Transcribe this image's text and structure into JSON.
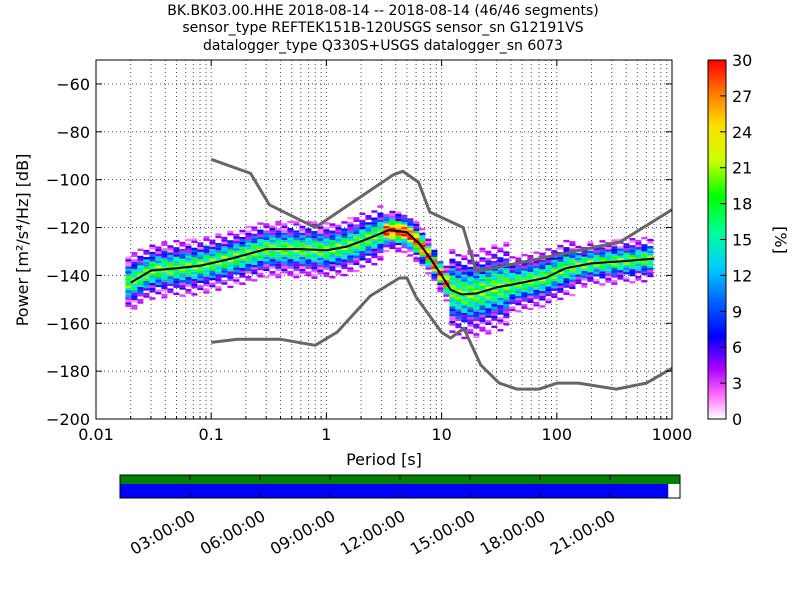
{
  "title": {
    "line1": "BK.BK03.00.HHE   2018-08-14 -- 2018-08-14  (46/46 segments)",
    "line2": "sensor_type REFTEK151B-120USGS sensor_sn G12191VS",
    "line3": "datalogger_type Q330S+USGS datalogger_sn 6073"
  },
  "chart_data": [
    {
      "type": "heatmap",
      "xlabel": "Period [s]",
      "ylabel": "Power [m²/s⁴/Hz] [dB]",
      "xscale": "log",
      "xlim": [
        0.01,
        1000
      ],
      "ylim": [
        -200,
        -50
      ],
      "xticks": [
        0.01,
        0.1,
        1,
        10,
        100,
        1000
      ],
      "xtick_labels": [
        "0.01",
        "0.1",
        "1",
        "10",
        "100",
        "1000"
      ],
      "yticks": [
        -200,
        -180,
        -160,
        -140,
        -120,
        -100,
        -80,
        -60
      ],
      "ytick_labels": [
        "−200",
        "−180",
        "−160",
        "−140",
        "−120",
        "−100",
        "−80",
        "−60"
      ],
      "grid": true,
      "colorbar": {
        "label": "[%]",
        "range": [
          0,
          30
        ],
        "ticks": [
          0,
          3,
          6,
          9,
          12,
          15,
          18,
          21,
          24,
          27,
          30
        ],
        "tick_labels": [
          "0",
          "3",
          "6",
          "9",
          "12",
          "15",
          "18",
          "21",
          "24",
          "27",
          "30"
        ]
      },
      "noise_models": [
        {
          "role": "high-noise-model",
          "period": [
            0.1,
            0.22,
            0.32,
            0.8,
            3.8,
            4.6,
            6.3,
            7.9,
            15.4,
            20,
            354.8,
            1000
          ],
          "power": [
            -91.5,
            -97.4,
            -110.5,
            -120,
            -98,
            -96.5,
            -101,
            -113.5,
            -120,
            -138.5,
            -126,
            -112.5
          ]
        },
        {
          "role": "low-noise-model",
          "period": [
            0.1,
            0.17,
            0.4,
            0.8,
            1.24,
            2.4,
            4.3,
            5,
            6,
            10,
            12,
            15.6,
            21.9,
            31.6,
            45,
            70,
            101,
            154,
            328,
            600,
            1000
          ],
          "power": [
            -168,
            -166.7,
            -166.7,
            -169.2,
            -163.7,
            -148.6,
            -141.1,
            -141.1,
            -149,
            -163.8,
            -166.2,
            -162.1,
            -177.5,
            -185,
            -187.5,
            -187.5,
            -185,
            -185,
            -187.5,
            -185,
            -178.8
          ]
        }
      ],
      "mode_curve": {
        "period": [
          0.02,
          0.03,
          0.05,
          0.08,
          0.15,
          0.3,
          0.6,
          1.0,
          1.5,
          2.5,
          3.5,
          5.0,
          6.5,
          8.0,
          10.0,
          12.0,
          15.0,
          20.0,
          30.0,
          50.0,
          80.0,
          120.0,
          200.0,
          400.0,
          700.0
        ],
        "power": [
          -143,
          -138,
          -137,
          -136,
          -133,
          -129,
          -129,
          -129.5,
          -128,
          -124,
          -121,
          -122,
          -127,
          -133,
          -140,
          -146,
          -148,
          -147.5,
          -145,
          -143,
          -141,
          -137,
          -135,
          -134,
          -133
        ]
      }
    },
    {
      "type": "bar",
      "role": "data-availability",
      "xticks": [
        "03:00:00",
        "06:00:00",
        "09:00:00",
        "12:00:00",
        "15:00:00",
        "18:00:00",
        "21:00:00"
      ],
      "coverage_fraction": 0.979,
      "colors": {
        "availability": "#008000",
        "psd_used": "#0000ff"
      }
    }
  ]
}
